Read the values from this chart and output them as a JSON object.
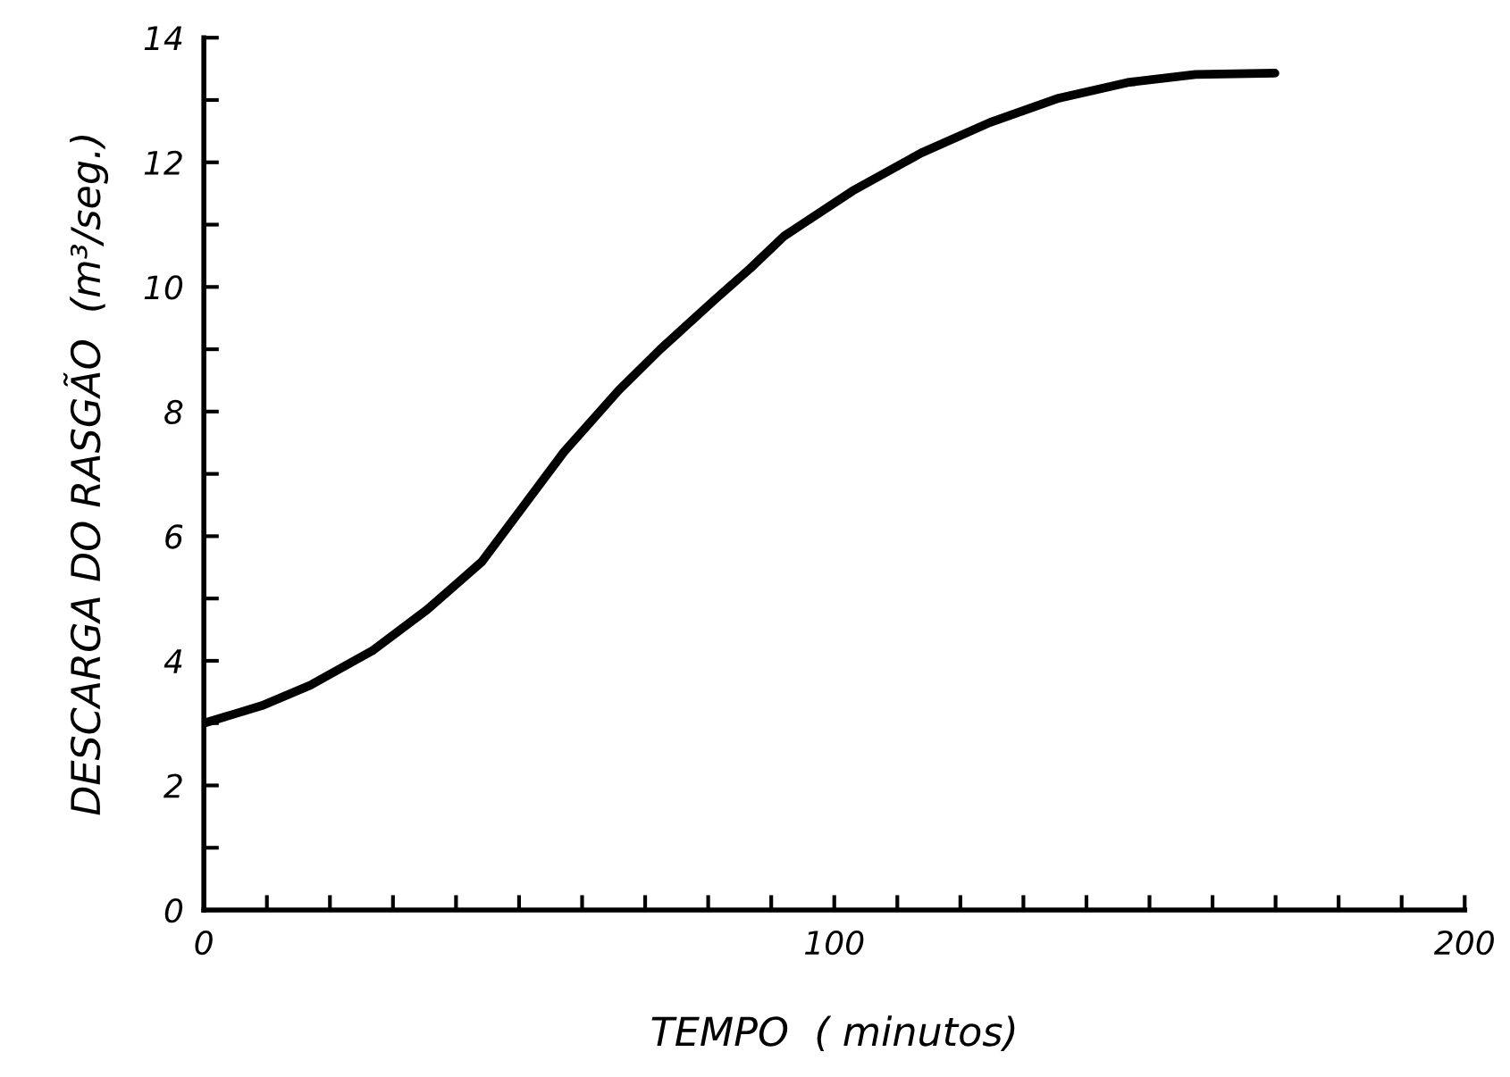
{
  "chart_data": {
    "type": "line",
    "xlabel": "TEMPO  ( minutos)",
    "ylabel": "DESCARGA DO RASGÃO  (m³/seg.)",
    "series": [
      {
        "color": "#000000",
        "x": [
          0,
          9.2,
          16.9,
          26.7,
          35.4,
          44.1,
          50.6,
          57.1,
          65.8,
          72.4,
          81.1,
          86.7,
          92.1,
          102.9,
          113.8,
          124.7,
          135.6,
          146.5,
          157.3,
          169.9
        ],
        "values": [
          3.0,
          3.28,
          3.61,
          4.16,
          4.82,
          5.59,
          6.47,
          7.35,
          8.34,
          9.0,
          9.8,
          10.3,
          10.82,
          11.54,
          12.15,
          12.64,
          13.03,
          13.28,
          13.41,
          13.43
        ]
      }
    ],
    "xlim": [
      0,
      200
    ],
    "ylim": [
      0,
      14
    ],
    "xticks": [
      0,
      {
        "value": 10,
        "label": null
      },
      {
        "value": 20,
        "label": null
      },
      {
        "value": 30,
        "label": null
      },
      {
        "value": 40,
        "label": null
      },
      {
        "value": 50,
        "label": null
      },
      {
        "value": 60,
        "label": null
      },
      {
        "value": 70,
        "label": null
      },
      {
        "value": 80,
        "label": null
      },
      {
        "value": 90,
        "label": null
      },
      100,
      {
        "value": 110,
        "label": null
      },
      {
        "value": 120,
        "label": null
      },
      {
        "value": 130,
        "label": null
      },
      {
        "value": 140,
        "label": null
      },
      {
        "value": 150,
        "label": null
      },
      {
        "value": 160,
        "label": null
      },
      {
        "value": 170,
        "label": null
      },
      {
        "value": 180,
        "label": null
      },
      {
        "value": 190,
        "label": null
      },
      200
    ],
    "yticks": [
      0,
      {
        "value": 1,
        "label": null
      },
      2,
      {
        "value": 3,
        "label": null
      },
      4,
      {
        "value": 5,
        "label": null
      },
      6,
      {
        "value": 7,
        "label": null
      },
      8,
      {
        "value": 9,
        "label": null
      },
      10,
      {
        "value": 11,
        "label": null
      },
      12,
      {
        "value": 13,
        "label": null
      },
      14
    ],
    "grid": false,
    "legend": false,
    "marker": "none",
    "line_style": "solid"
  }
}
